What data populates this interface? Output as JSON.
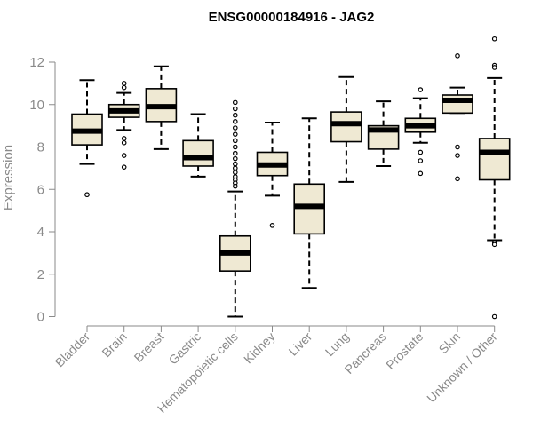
{
  "chart_data": {
    "type": "box",
    "title": "ENSG00000184916 - JAG2",
    "xlabel": "",
    "ylabel": "Expression",
    "ylim": [
      0,
      12
    ],
    "yticks": [
      0,
      2,
      4,
      6,
      8,
      10,
      12
    ],
    "grid": false,
    "box_color": "#efe9d3",
    "categories": [
      "Bladder",
      "Brain",
      "Breast",
      "Gastric",
      "Hematopoietic cells",
      "Kidney",
      "Liver",
      "Lung",
      "Pancreas",
      "Prostate",
      "Skin",
      "Unknown / Other"
    ],
    "series": [
      {
        "category": "Bladder",
        "whisker_low": 7.2,
        "q1": 8.1,
        "median": 8.75,
        "q3": 9.55,
        "whisker_high": 11.15,
        "outliers": [
          5.75
        ]
      },
      {
        "category": "Brain",
        "whisker_low": 8.8,
        "q1": 9.4,
        "median": 9.7,
        "q3": 10.0,
        "whisker_high": 10.55,
        "outliers": [
          11.0,
          10.8,
          8.4,
          8.2,
          7.6,
          7.05
        ]
      },
      {
        "category": "Breast",
        "whisker_low": 7.9,
        "q1": 9.2,
        "median": 9.9,
        "q3": 10.75,
        "whisker_high": 11.8,
        "outliers": []
      },
      {
        "category": "Gastric",
        "whisker_low": 6.6,
        "q1": 7.1,
        "median": 7.5,
        "q3": 8.3,
        "whisker_high": 9.55,
        "outliers": []
      },
      {
        "category": "Hematopoietic cells",
        "whisker_low": 0.0,
        "q1": 2.15,
        "median": 3.0,
        "q3": 3.8,
        "whisker_high": 5.9,
        "outliers": [
          10.1,
          9.8,
          9.5,
          9.2,
          8.9,
          8.6,
          8.3,
          8.0,
          7.7,
          7.45,
          7.2,
          7.0,
          6.8,
          6.6,
          6.45,
          6.3,
          6.15
        ]
      },
      {
        "category": "Kidney",
        "whisker_low": 5.7,
        "q1": 6.65,
        "median": 7.15,
        "q3": 7.75,
        "whisker_high": 9.15,
        "outliers": [
          4.3
        ]
      },
      {
        "category": "Liver",
        "whisker_low": 1.35,
        "q1": 3.9,
        "median": 5.2,
        "q3": 6.25,
        "whisker_high": 9.35,
        "outliers": []
      },
      {
        "category": "Lung",
        "whisker_low": 6.35,
        "q1": 8.25,
        "median": 9.1,
        "q3": 9.65,
        "whisker_high": 11.3,
        "outliers": []
      },
      {
        "category": "Pancreas",
        "whisker_low": 7.1,
        "q1": 7.9,
        "median": 8.8,
        "q3": 9.0,
        "whisker_high": 10.15,
        "outliers": []
      },
      {
        "category": "Prostate",
        "whisker_low": 8.2,
        "q1": 8.7,
        "median": 9.0,
        "q3": 9.35,
        "whisker_high": 10.3,
        "outliers": [
          10.7,
          7.75,
          7.35,
          6.75
        ]
      },
      {
        "category": "Skin",
        "whisker_low": 9.6,
        "q1": 9.6,
        "median": 10.2,
        "q3": 10.45,
        "whisker_high": 10.8,
        "outliers": [
          12.3,
          8.0,
          7.6,
          6.5
        ]
      },
      {
        "category": "Unknown / Other",
        "whisker_low": 3.6,
        "q1": 6.45,
        "median": 7.75,
        "q3": 8.4,
        "whisker_high": 11.25,
        "outliers": [
          13.1,
          11.85,
          11.75,
          3.5,
          3.4,
          0.0
        ]
      }
    ]
  }
}
